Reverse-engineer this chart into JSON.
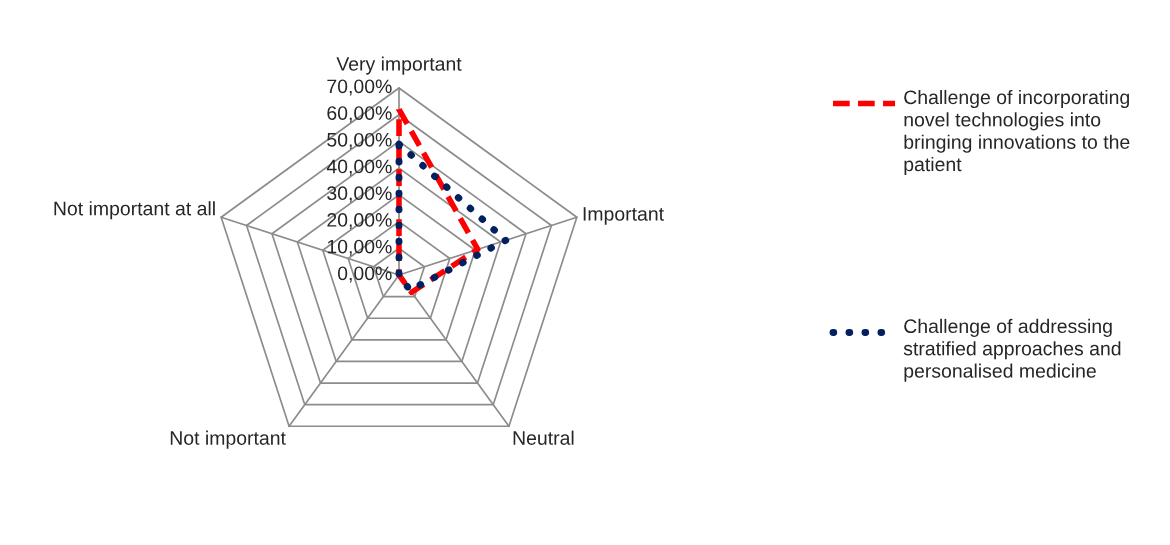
{
  "chart_data": {
    "type": "radar",
    "categories": [
      "Very important",
      "Important",
      "Neutral",
      "Not important",
      "Not important at all"
    ],
    "series": [
      {
        "name": "Challenge of incorporating novel technologies into bringing innovations to the patient",
        "color": "#ff0000",
        "line_style": "dashed",
        "values": [
          62,
          31,
          8,
          0,
          0
        ]
      },
      {
        "name": "Challenge of addressing stratified approaches and personalised medicine",
        "color": "#002060",
        "line_style": "dotted",
        "values": [
          49,
          42,
          7,
          0,
          0
        ]
      }
    ],
    "ylim": [
      0,
      70
    ],
    "yticks": [
      {
        "value": 0,
        "label": "0,00%"
      },
      {
        "value": 10,
        "label": "10,00%"
      },
      {
        "value": 20,
        "label": "20,00%"
      },
      {
        "value": 30,
        "label": "30,00%"
      },
      {
        "value": 40,
        "label": "40,00%"
      },
      {
        "value": 50,
        "label": "50,00%"
      },
      {
        "value": 60,
        "label": "60,00%"
      },
      {
        "value": 70,
        "label": "70,00%"
      }
    ],
    "legend": "right"
  }
}
